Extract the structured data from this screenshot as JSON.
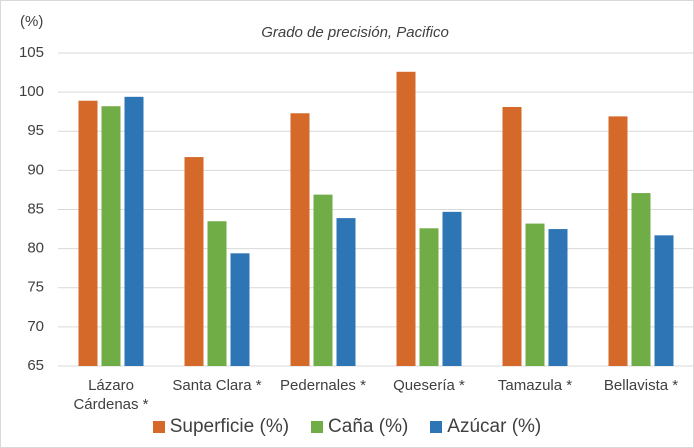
{
  "chart_data": {
    "type": "bar",
    "title": "Grado de precisión, Pacifico",
    "y_label": "(%)",
    "categories": [
      "Lázaro Cárdenas *",
      "Santa Clara *",
      "Pedernales *",
      "Quesería *",
      "Tamazula *",
      "Bellavista *"
    ],
    "series": [
      {
        "name": "Superficie (%)",
        "color": "#d4692a",
        "values": [
          98.9,
          91.7,
          97.3,
          102.6,
          98.1,
          96.9
        ]
      },
      {
        "name": "Caña (%)",
        "color": "#70ad47",
        "values": [
          98.2,
          83.5,
          86.9,
          82.6,
          83.2,
          87.1
        ]
      },
      {
        "name": "Azúcar (%)",
        "color": "#2e75b6",
        "values": [
          99.4,
          79.4,
          83.9,
          84.7,
          82.5,
          81.7
        ]
      }
    ],
    "ylim": [
      65,
      105
    ],
    "yticks": [
      65,
      70,
      75,
      80,
      85,
      90,
      95,
      100,
      105
    ],
    "grid": true,
    "legend": "bottom"
  }
}
